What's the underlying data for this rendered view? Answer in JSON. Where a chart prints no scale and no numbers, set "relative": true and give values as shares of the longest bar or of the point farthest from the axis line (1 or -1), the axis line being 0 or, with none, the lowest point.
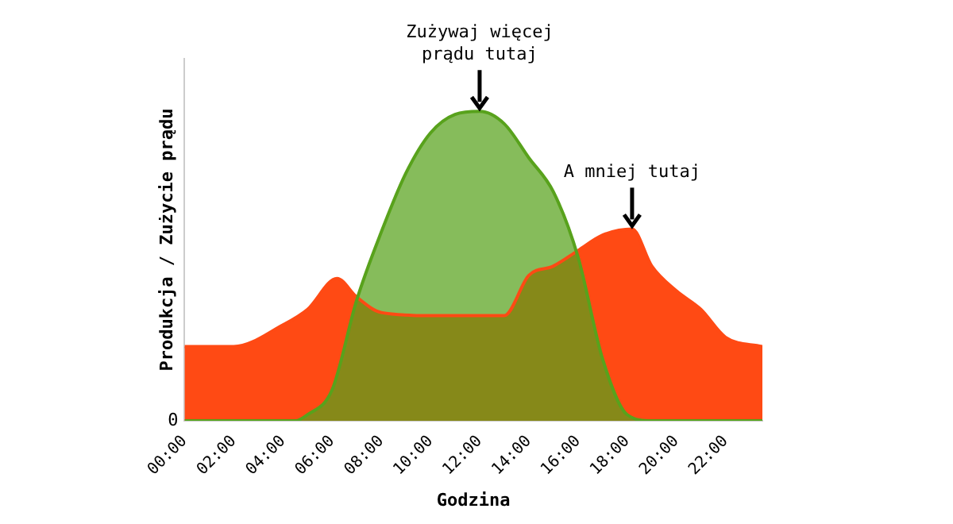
{
  "chart_data": {
    "type": "area",
    "relative": true,
    "xlabel": "Godzina",
    "ylabel": "Produkcja / Zużycie prądu",
    "xlim": [
      0,
      23.5
    ],
    "xticks": [
      {
        "value": 0,
        "label": "00:00"
      },
      {
        "value": 2,
        "label": "02:00"
      },
      {
        "value": 4,
        "label": "04:00"
      },
      {
        "value": 6,
        "label": "06:00"
      },
      {
        "value": 8,
        "label": "08:00"
      },
      {
        "value": 10,
        "label": "10:00"
      },
      {
        "value": 12,
        "label": "12:00"
      },
      {
        "value": 14,
        "label": "14:00"
      },
      {
        "value": 16,
        "label": "16:00"
      },
      {
        "value": 18,
        "label": "18:00"
      },
      {
        "value": 20,
        "label": "20:00"
      },
      {
        "value": 22,
        "label": "22:00"
      }
    ],
    "grid": false,
    "legend": false,
    "marker": "none",
    "series": [
      {
        "color": "#ff4a14",
        "x": [
          0,
          2,
          4,
          5,
          6.2,
          7,
          8,
          10,
          12,
          13,
          14,
          15,
          16,
          17,
          18.2,
          19,
          20,
          21,
          22,
          23.5
        ],
        "values": [
          0.24,
          0.24,
          0.31,
          0.36,
          0.46,
          0.4,
          0.35,
          0.34,
          0.34,
          0.34,
          0.47,
          0.5,
          0.55,
          0.6,
          0.62,
          0.5,
          0.42,
          0.36,
          0.27,
          0.24
        ]
      },
      {
        "color": "#58a21c",
        "x": [
          0,
          4.5,
          5,
          6,
          7,
          8,
          9,
          10,
          11,
          12,
          13,
          14,
          15,
          16,
          17,
          18,
          19,
          23.5
        ],
        "values": [
          0,
          0,
          0.02,
          0.1,
          0.39,
          0.61,
          0.8,
          0.93,
          0.99,
          1,
          0.96,
          0.85,
          0.74,
          0.53,
          0.2,
          0.02,
          0,
          0
        ]
      }
    ],
    "annotations": [
      "0",
      {
        "text": "Zużywaj więcej\nprądu tutaj",
        "x": 12,
        "y": 1
      },
      {
        "text": "A mniej tutaj",
        "x": 18.2,
        "y": 0.62
      }
    ]
  }
}
